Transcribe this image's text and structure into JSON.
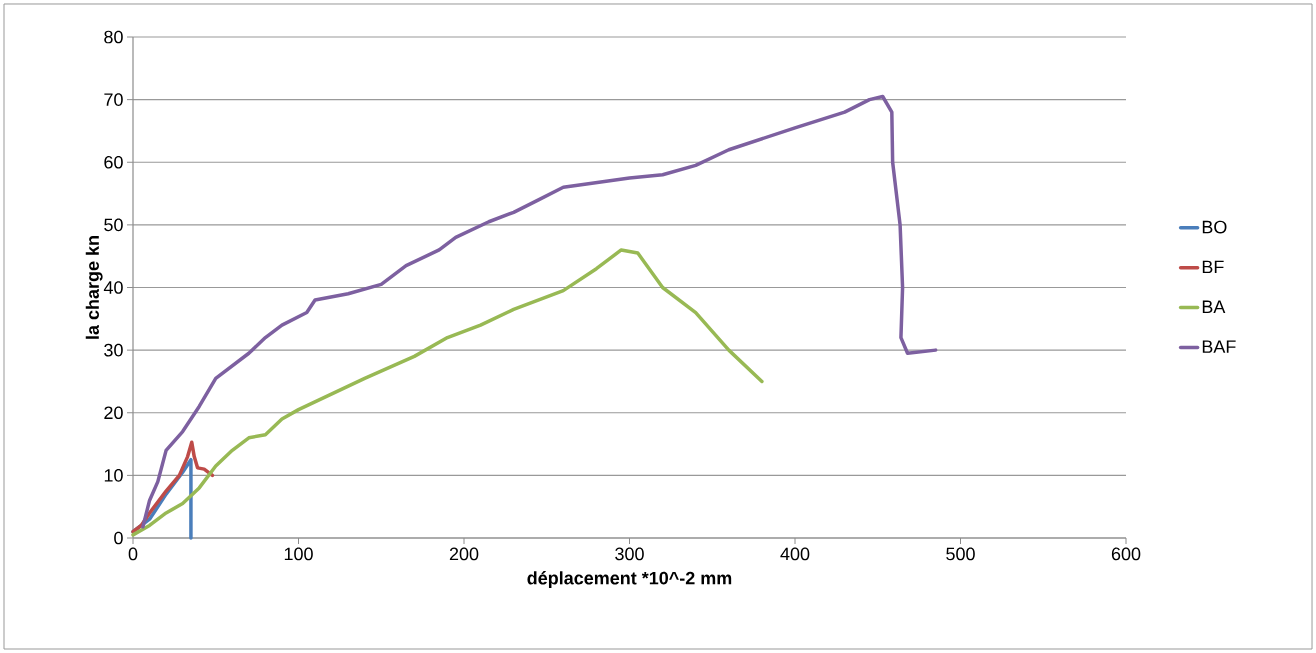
{
  "chart_data": {
    "type": "line",
    "xlabel": "déplacement *10^-2 mm",
    "ylabel": "la charge kn",
    "xlim": [
      0,
      600
    ],
    "ylim": [
      0,
      80
    ],
    "xticks": [
      0,
      100,
      200,
      300,
      400,
      500,
      600
    ],
    "yticks": [
      0,
      10,
      20,
      30,
      40,
      50,
      60,
      70,
      80
    ],
    "grid": "y",
    "legend": "right",
    "marker": "none",
    "line_style": "solid",
    "series": [
      {
        "name": "BO",
        "color": "#4a7ebb",
        "x": [
          0,
          10,
          20,
          30,
          35,
          35
        ],
        "values": [
          1,
          3,
          7,
          10.5,
          12.5,
          0
        ]
      },
      {
        "name": "BF",
        "color": "#be4b48",
        "x": [
          0,
          5,
          10,
          20,
          28,
          33,
          35.5,
          37,
          39,
          43,
          48
        ],
        "values": [
          1,
          2,
          4,
          7.5,
          10,
          13,
          15.3,
          13,
          11.2,
          11,
          10
        ]
      },
      {
        "name": "BA",
        "color": "#98b954",
        "x": [
          0,
          10,
          20,
          30,
          40,
          50,
          60,
          70,
          80,
          90,
          100,
          120,
          140,
          170,
          190,
          210,
          230,
          260,
          280,
          295,
          305,
          320,
          340,
          360,
          380
        ],
        "values": [
          0.5,
          2,
          4,
          5.5,
          8,
          11.5,
          14,
          16,
          16.5,
          19,
          20.5,
          23,
          25.5,
          29,
          32,
          34,
          36.5,
          39.5,
          43,
          46,
          45.5,
          40,
          36,
          30,
          25
        ]
      },
      {
        "name": "BAF",
        "color": "#7d60a0",
        "x": [
          6,
          10,
          15,
          20,
          30,
          40,
          50,
          60,
          70,
          80,
          90,
          105,
          110,
          130,
          150,
          165,
          185,
          195,
          215,
          230,
          245,
          260,
          300,
          320,
          340,
          360,
          400,
          430,
          445,
          453,
          458.5,
          459,
          463.5,
          465,
          464,
          468,
          485
        ],
        "values": [
          1.8,
          6,
          9,
          14,
          17,
          21,
          25.5,
          27.5,
          29.5,
          32,
          34,
          36,
          38,
          39,
          40.5,
          43.5,
          46,
          48,
          50.5,
          52,
          54,
          56,
          57.5,
          58,
          59.5,
          62,
          65.5,
          68,
          70,
          70.5,
          68,
          60,
          50,
          40,
          32,
          29.5,
          30
        ]
      }
    ]
  }
}
